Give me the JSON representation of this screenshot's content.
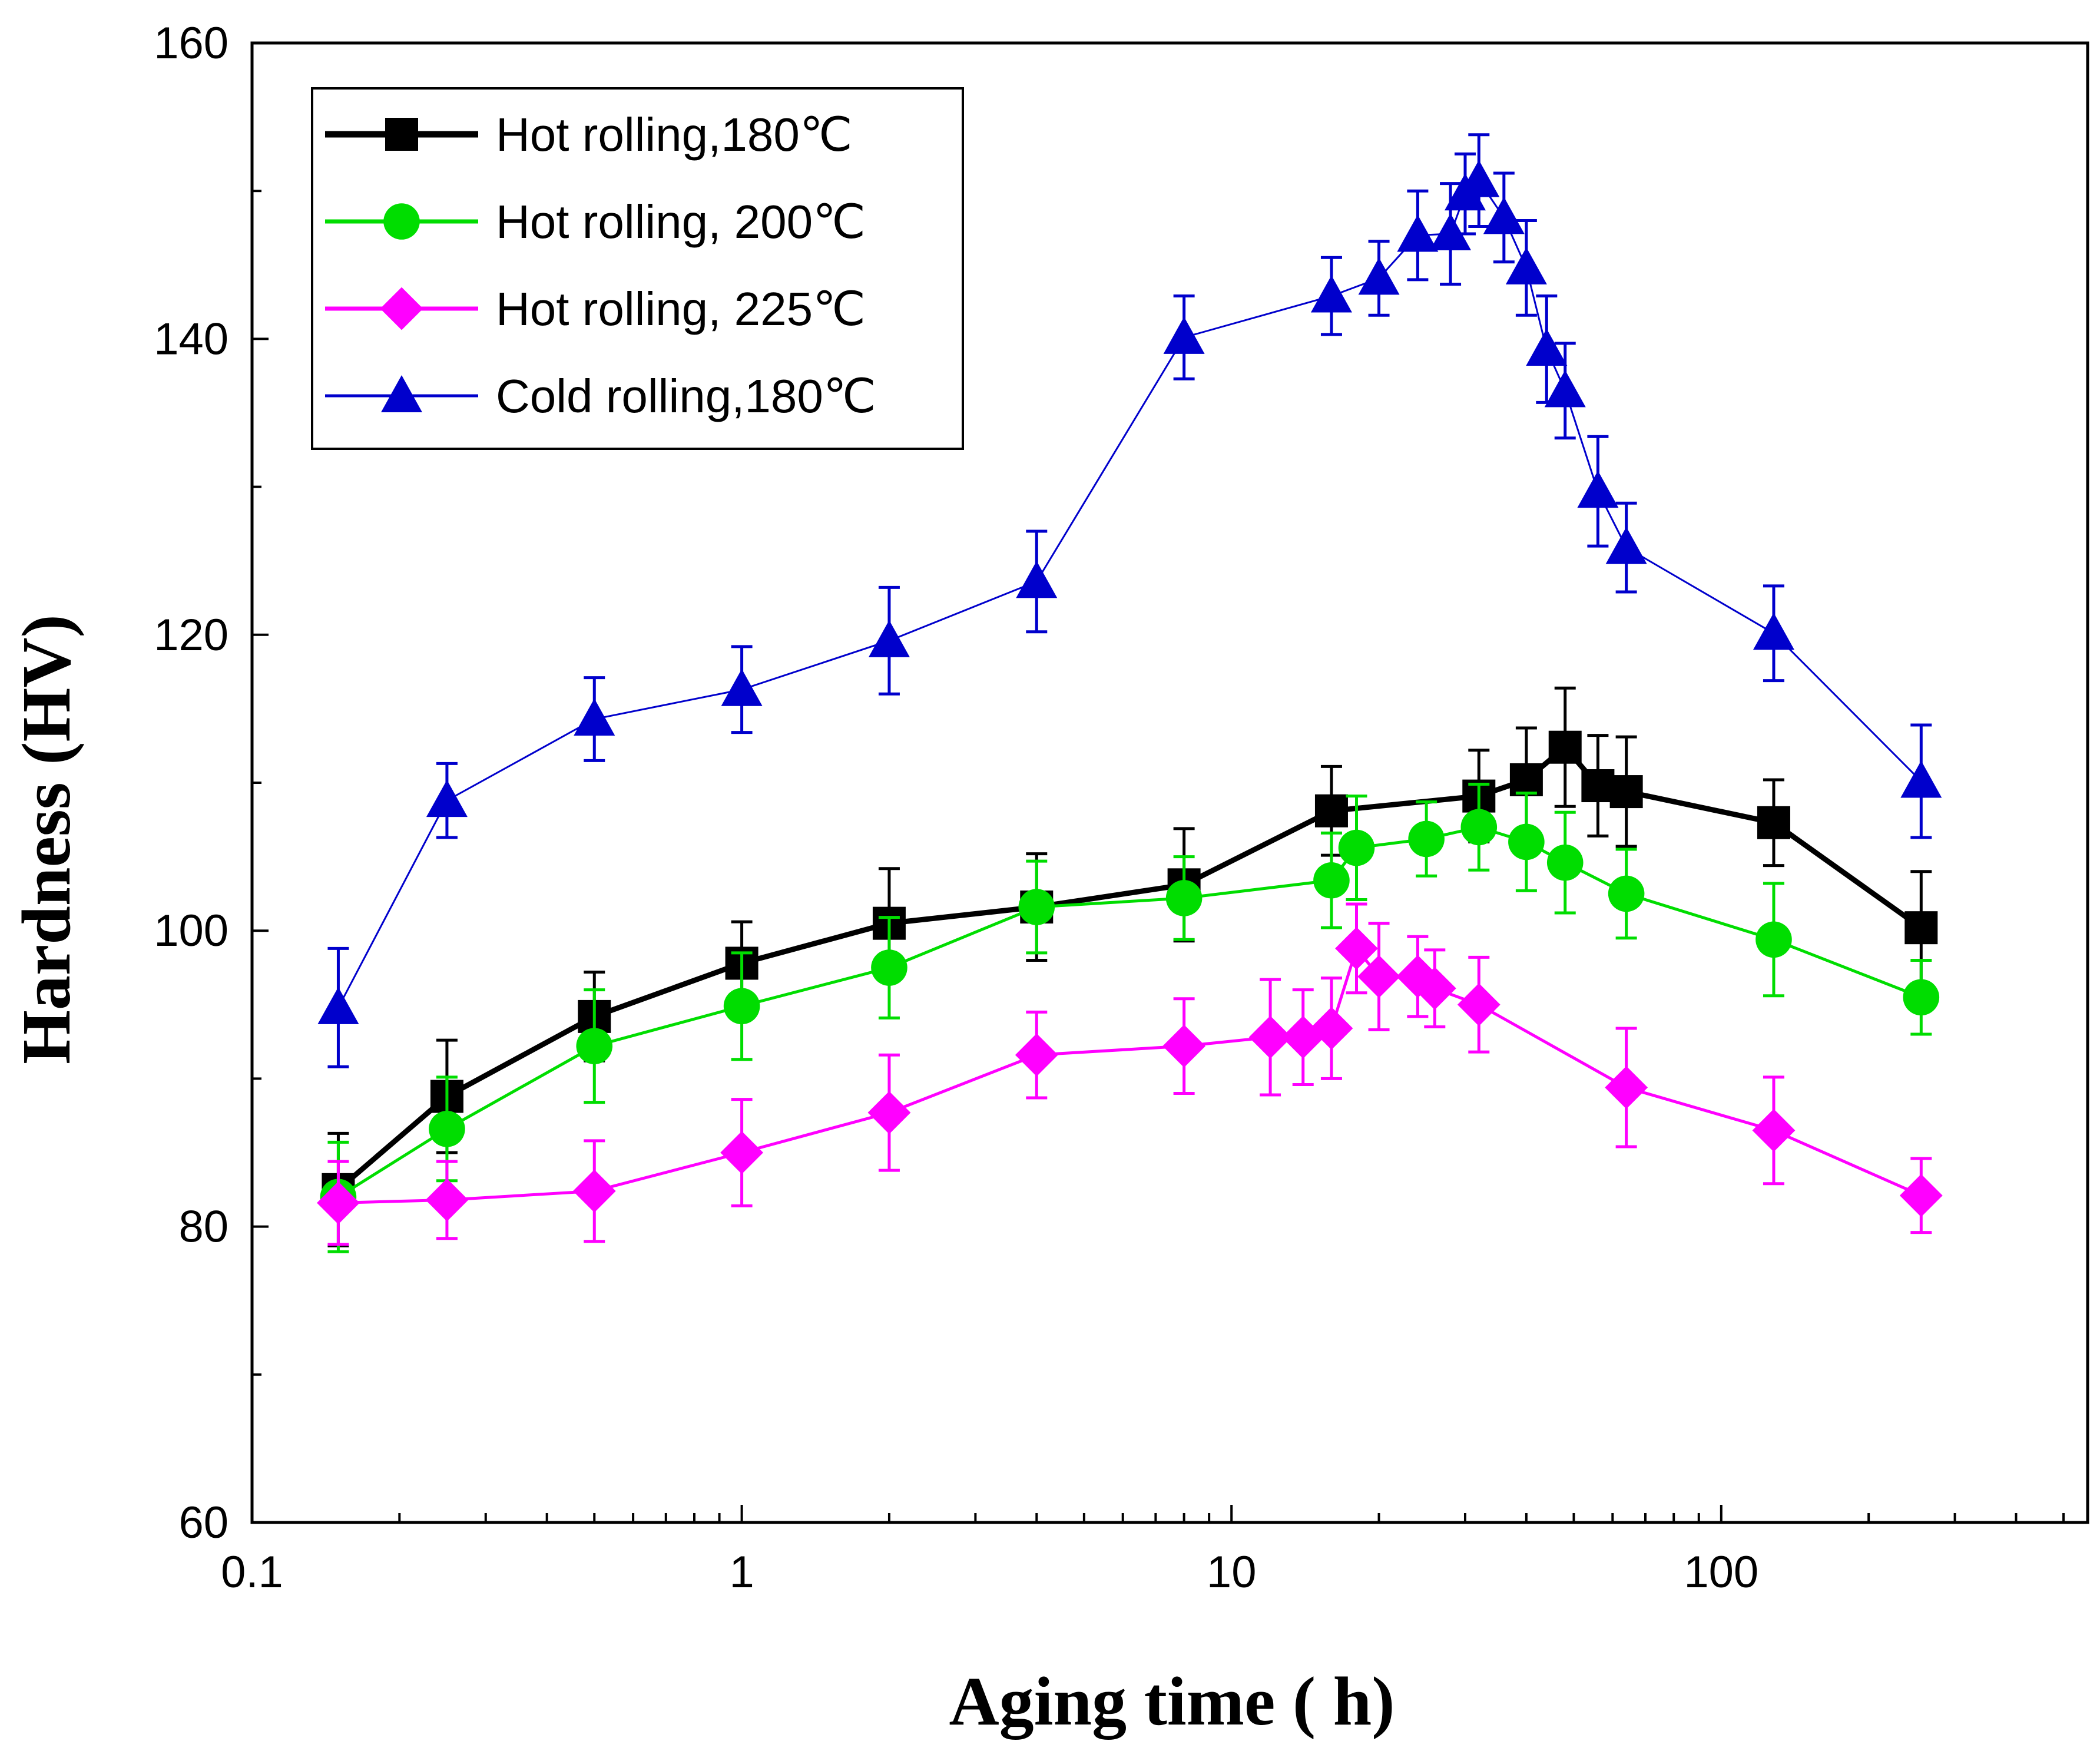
{
  "chart_data": {
    "type": "line",
    "title": "",
    "xlabel": "Aging time ( h)",
    "ylabel": "Hardness (HV)",
    "xscale": "log",
    "xlim": [
      0.1,
      560
    ],
    "ylim": [
      60,
      160
    ],
    "xticks": [
      0.1,
      1,
      10,
      100
    ],
    "xtick_labels": [
      "0.1",
      "1",
      "10",
      "100"
    ],
    "yticks": [
      60,
      80,
      100,
      120,
      140,
      160
    ],
    "ytick_labels": [
      "60",
      "80",
      "100",
      "120",
      "140",
      "160"
    ],
    "legend_position": "top-left",
    "series": [
      {
        "name": "Hot rolling,180℃",
        "color": "#000000",
        "marker": "square",
        "line_width": 9,
        "x": [
          0.15,
          0.25,
          0.5,
          1,
          2,
          4,
          8,
          16,
          32,
          40,
          48,
          56,
          64,
          128,
          256
        ],
        "y": [
          82.5,
          88.8,
          94.2,
          97.8,
          100.5,
          101.6,
          103.1,
          108.1,
          109.1,
          110.2,
          112.4,
          109.8,
          109.4,
          107.3,
          100.2
        ],
        "err": [
          3.8,
          3.8,
          3.0,
          2.8,
          3.7,
          3.6,
          3.8,
          3.0,
          3.1,
          3.5,
          4.0,
          3.4,
          3.7,
          2.9,
          3.8
        ]
      },
      {
        "name": "Hot rolling, 200℃",
        "color": "#00DD00",
        "marker": "circle",
        "line_width": 5,
        "x": [
          0.15,
          0.25,
          0.5,
          1,
          2,
          4,
          8,
          16,
          18,
          25,
          32,
          40,
          48,
          64,
          128,
          256
        ],
        "y": [
          82.0,
          86.6,
          92.2,
          94.9,
          97.5,
          101.6,
          102.2,
          103.4,
          105.6,
          106.2,
          107.0,
          106.0,
          104.6,
          102.5,
          99.4,
          95.5
        ],
        "err": [
          3.7,
          3.5,
          3.8,
          3.6,
          3.4,
          3.1,
          2.8,
          3.2,
          3.5,
          2.5,
          2.9,
          3.3,
          3.4,
          3.0,
          3.8,
          2.5
        ]
      },
      {
        "name": "Hot rolling, 225℃",
        "color": "#FF00FF",
        "marker": "diamond",
        "line_width": 5,
        "x": [
          0.15,
          0.25,
          0.5,
          1,
          2,
          4,
          8,
          12,
          14,
          16,
          18,
          20,
          24,
          26,
          32,
          64,
          128,
          256
        ],
        "y": [
          81.6,
          81.8,
          82.4,
          85.0,
          87.7,
          91.6,
          92.2,
          92.8,
          92.8,
          93.4,
          98.8,
          96.9,
          96.9,
          96.1,
          95.0,
          89.4,
          86.5,
          82.1
        ],
        "err": [
          2.8,
          2.6,
          3.4,
          3.6,
          3.9,
          2.9,
          3.2,
          3.9,
          3.2,
          3.4,
          3.0,
          3.6,
          2.7,
          2.6,
          3.2,
          4.0,
          3.6,
          2.5
        ]
      },
      {
        "name": "Cold rolling,180℃",
        "color": "#0000CC",
        "marker": "triangle",
        "line_width": 3,
        "x": [
          0.15,
          0.25,
          0.5,
          1,
          2,
          4,
          8,
          16,
          20,
          24,
          28,
          30,
          32,
          36,
          40,
          44,
          48,
          56,
          64,
          128,
          256
        ],
        "y": [
          94.8,
          108.8,
          114.3,
          116.3,
          119.6,
          123.6,
          140.1,
          142.9,
          144.1,
          147.0,
          147.1,
          149.8,
          150.7,
          148.2,
          144.8,
          139.3,
          136.5,
          129.7,
          125.9,
          120.1,
          110.1
        ],
        "err": [
          4.0,
          2.5,
          2.8,
          2.9,
          3.6,
          3.4,
          2.8,
          2.6,
          2.5,
          3.0,
          3.4,
          2.7,
          3.1,
          3.0,
          3.2,
          3.6,
          3.2,
          3.7,
          3.0,
          3.2,
          3.8
        ]
      }
    ]
  }
}
